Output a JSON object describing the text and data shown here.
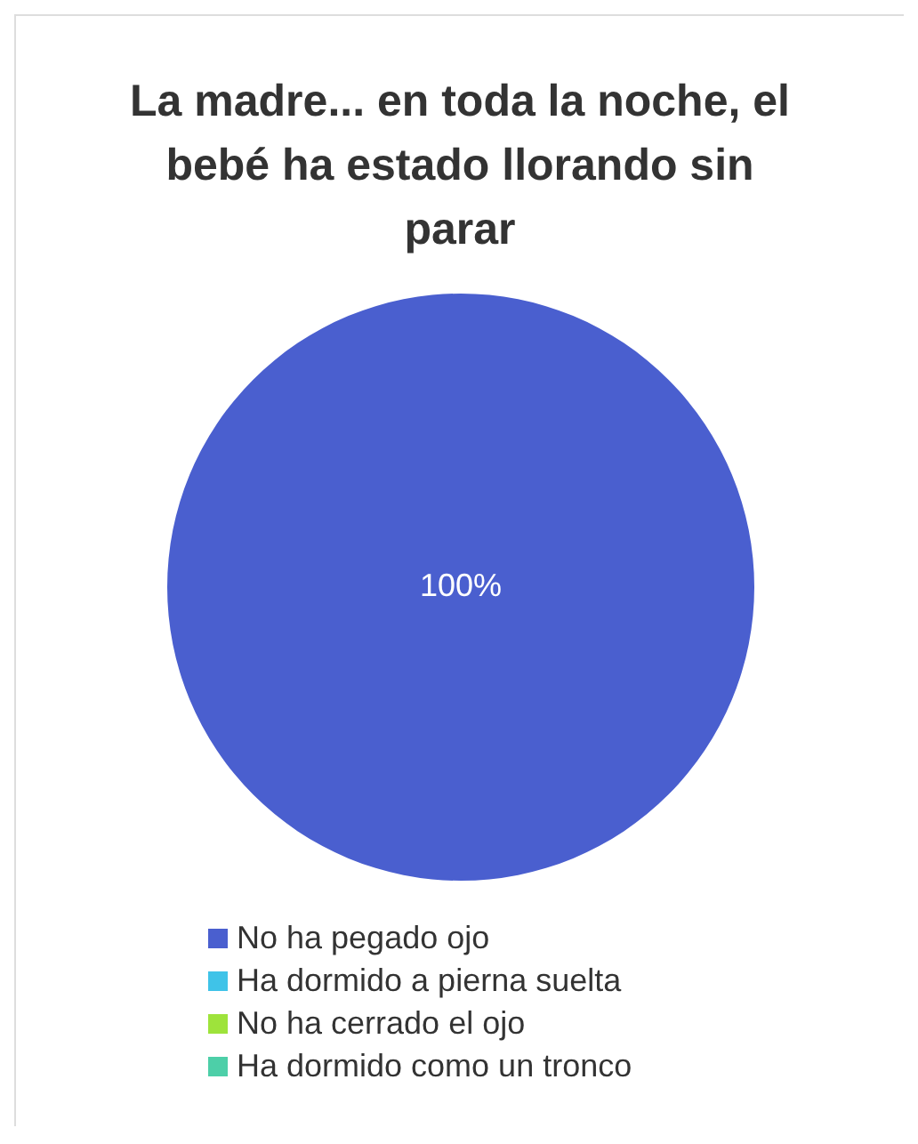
{
  "chart_data": {
    "type": "pie",
    "title": "La madre... en toda la noche, el bebé ha estado llorando sin parar",
    "categories": [
      "No ha pegado ojo",
      "Ha dormido a pierna suelta",
      "No ha cerrado el ojo",
      "Ha dormido como un tronco"
    ],
    "values": [
      100,
      0,
      0,
      0
    ],
    "colors": [
      "#4a5fcf",
      "#3fc3e8",
      "#9ee33b",
      "#4dcfa8"
    ],
    "value_labels": [
      "100%",
      null,
      null,
      null
    ],
    "legend": "bottom"
  }
}
